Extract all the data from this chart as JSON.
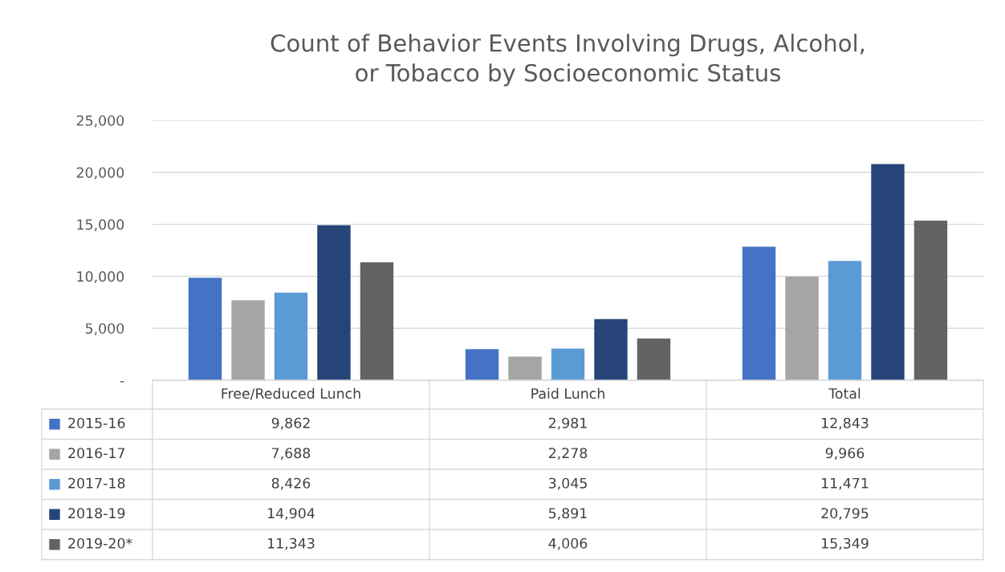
{
  "chart_data": {
    "type": "bar",
    "title": "Count of Behavior Events Involving Drugs, Alcohol,\nor Tobacco by Socioeconomic Status",
    "categories": [
      "Free/Reduced Lunch",
      "Paid Lunch",
      "Total"
    ],
    "series": [
      {
        "name": "2015-16",
        "color": "#4472c4",
        "values": [
          9862,
          2981,
          12843
        ],
        "value_labels": [
          "9,862",
          "2,981",
          "12,843"
        ]
      },
      {
        "name": "2016-17",
        "color": "#a5a5a5",
        "values": [
          7688,
          2278,
          9966
        ],
        "value_labels": [
          "7,688",
          "2,278",
          "9,966"
        ]
      },
      {
        "name": "2017-18",
        "color": "#5b9bd5",
        "values": [
          8426,
          3045,
          11471
        ],
        "value_labels": [
          "8,426",
          "3,045",
          "11,471"
        ]
      },
      {
        "name": "2018-19",
        "color": "#264478",
        "values": [
          14904,
          5891,
          20795
        ],
        "value_labels": [
          "14,904",
          "5,891",
          "20,795"
        ]
      },
      {
        "name": "2019-20*",
        "color": "#636363",
        "values": [
          11343,
          4006,
          15349
        ],
        "value_labels": [
          "11,343",
          "4,006",
          "15,349"
        ]
      }
    ],
    "ylim": [
      0,
      25000
    ],
    "yticks": [
      {
        "value": 0,
        "label": "-"
      },
      {
        "value": 5000,
        "label": "5,000"
      },
      {
        "value": 10000,
        "label": "10,000"
      },
      {
        "value": 15000,
        "label": "15,000"
      },
      {
        "value": 20000,
        "label": "20,000"
      },
      {
        "value": 25000,
        "label": "25,000"
      }
    ],
    "grid": "y",
    "legend": "bottom"
  }
}
